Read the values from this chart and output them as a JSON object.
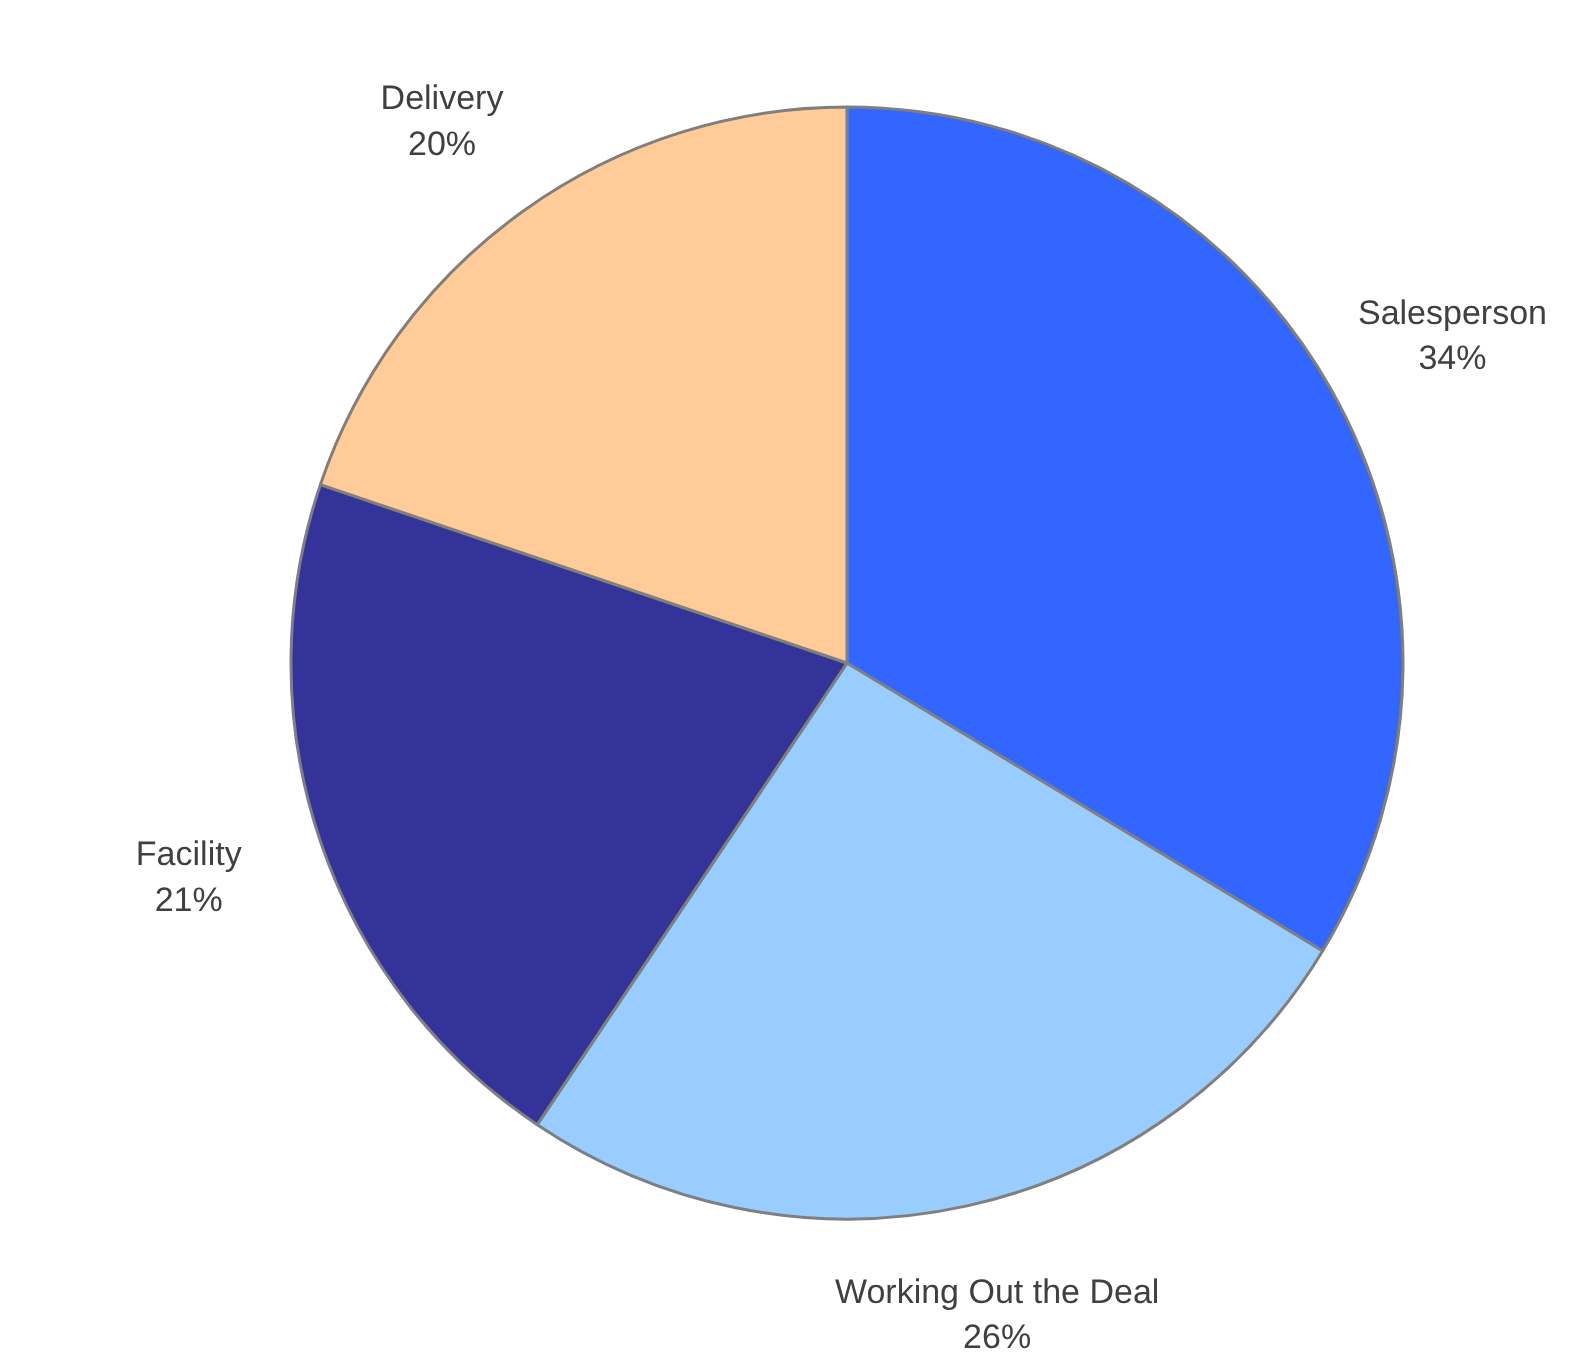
{
  "chart_data": {
    "type": "pie",
    "categories": [
      "Salesperson",
      "Working Out the Deal",
      "Facility",
      "Delivery"
    ],
    "values": [
      34,
      26,
      21,
      20
    ],
    "value_labels": [
      "34%",
      "26%",
      "21%",
      "20%"
    ],
    "colors": [
      "#3366ff",
      "#99ccff",
      "#333399",
      "#ffcc99"
    ]
  }
}
